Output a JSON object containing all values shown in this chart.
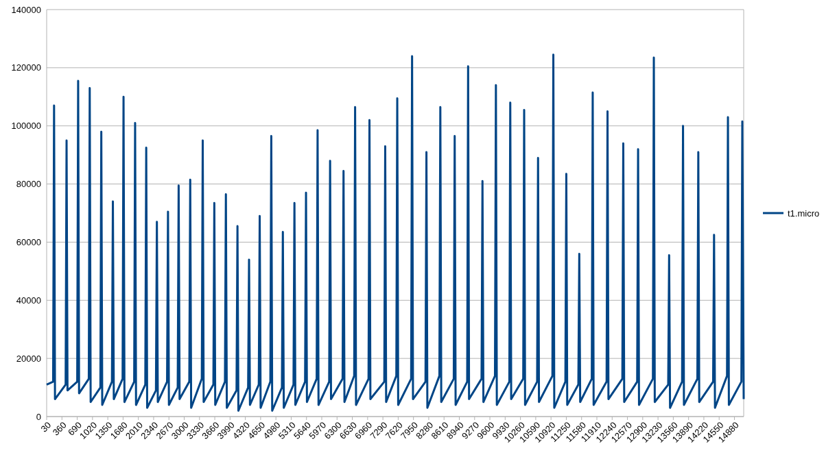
{
  "chart_data": {
    "type": "line",
    "xlim": [
      30,
      15080
    ],
    "ylim": [
      0,
      140000
    ],
    "xticks": [
      30,
      360,
      690,
      1020,
      1350,
      1680,
      2010,
      2340,
      2670,
      3000,
      3330,
      3660,
      3990,
      4320,
      4650,
      4980,
      5310,
      5640,
      5970,
      6300,
      6630,
      6960,
      7290,
      7620,
      7950,
      8280,
      8610,
      8940,
      9270,
      9600,
      9930,
      10260,
      10590,
      10920,
      11250,
      11580,
      11910,
      12240,
      12570,
      12900,
      13230,
      13560,
      13890,
      14220,
      14550,
      14880
    ],
    "yticks": [
      0,
      20000,
      40000,
      60000,
      80000,
      100000,
      120000,
      140000
    ],
    "grid": "y",
    "legend": "right",
    "line_style": "solid",
    "series": [
      {
        "name": "t1.micro",
        "color": "#004586",
        "x": [
          30,
          170,
          190,
          210,
          440,
          460,
          480,
          690,
          710,
          730,
          940,
          960,
          980,
          1190,
          1210,
          1230,
          1440,
          1460,
          1480,
          1670,
          1690,
          1710,
          1920,
          1940,
          1960,
          2160,
          2180,
          2200,
          2390,
          2410,
          2430,
          2630,
          2650,
          2670,
          2860,
          2880,
          2900,
          3110,
          3130,
          3150,
          3380,
          3400,
          3420,
          3630,
          3650,
          3670,
          3880,
          3900,
          3920,
          4130,
          4150,
          4170,
          4380,
          4400,
          4420,
          4610,
          4630,
          4650,
          4860,
          4880,
          4900,
          5110,
          5130,
          5150,
          5360,
          5380,
          5400,
          5610,
          5630,
          5650,
          5860,
          5880,
          5900,
          6130,
          6150,
          6170,
          6420,
          6440,
          6460,
          6670,
          6690,
          6710,
          6980,
          7000,
          7020,
          7320,
          7340,
          7360,
          7580,
          7600,
          7620,
          7900,
          7920,
          7940,
          8210,
          8230,
          8250,
          8510,
          8530,
          8550,
          8820,
          8840,
          8860,
          9110,
          9130,
          9150,
          9420,
          9440,
          9460,
          9710,
          9730,
          9750,
          10020,
          10040,
          10060,
          10320,
          10340,
          10360,
          10620,
          10640,
          10660,
          10950,
          10970,
          10990,
          11230,
          11250,
          11270,
          11510,
          11530,
          11550,
          11800,
          11820,
          11840,
          12120,
          12140,
          12160,
          12460,
          12480,
          12500,
          12780,
          12800,
          12820,
          13120,
          13140,
          13160,
          13450,
          13470,
          13490,
          13750,
          13770,
          13790,
          14080,
          14100,
          14120,
          14420,
          14440,
          14460,
          14720,
          14740,
          14760,
          15030,
          15050,
          15080
        ],
        "values": [
          11000,
          12000,
          107000,
          6000,
          11000,
          95000,
          9000,
          12000,
          115500,
          8000,
          13000,
          113000,
          5000,
          10000,
          98000,
          4000,
          12000,
          74000,
          6000,
          13000,
          110000,
          5000,
          12000,
          101000,
          4000,
          11000,
          92500,
          3000,
          9000,
          67000,
          5000,
          12000,
          70500,
          4000,
          10000,
          79500,
          6000,
          12000,
          81500,
          3000,
          13000,
          95000,
          5000,
          11000,
          73500,
          4000,
          12000,
          76500,
          3000,
          9000,
          65500,
          2000,
          10000,
          54000,
          4000,
          11000,
          69000,
          3000,
          12000,
          96500,
          2000,
          10000,
          63500,
          3000,
          11000,
          73500,
          4000,
          12000,
          77000,
          5000,
          13000,
          98500,
          4000,
          12000,
          88000,
          6000,
          13000,
          84500,
          5000,
          14000,
          106500,
          4000,
          13000,
          102000,
          6000,
          12000,
          93000,
          5000,
          14000,
          109500,
          4000,
          13000,
          124000,
          6000,
          12000,
          91000,
          3000,
          14000,
          106500,
          5000,
          13000,
          96500,
          4000,
          12000,
          120500,
          6000,
          13000,
          81000,
          5000,
          14000,
          114000,
          4000,
          12000,
          108000,
          6000,
          13000,
          105500,
          4000,
          12000,
          89000,
          5000,
          14000,
          124500,
          3000,
          12000,
          83500,
          4000,
          11000,
          56000,
          5000,
          13000,
          111500,
          4000,
          12000,
          105000,
          6000,
          13000,
          94000,
          5000,
          12000,
          92000,
          4000,
          13000,
          123500,
          5000,
          11000,
          55500,
          3000,
          12000,
          100000,
          4000,
          13000,
          91000,
          5000,
          12000,
          62500,
          3000,
          14000,
          103000,
          4000,
          12000,
          101500,
          6000
        ]
      }
    ]
  }
}
